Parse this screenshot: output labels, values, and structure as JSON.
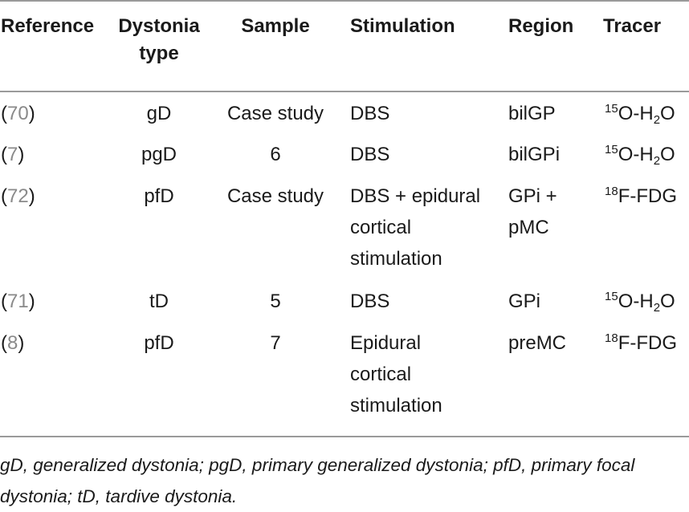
{
  "headers": {
    "reference": "Reference",
    "dystonia_type_line1": "Dystonia",
    "dystonia_type_line2": "type",
    "sample": "Sample",
    "stimulation": "Stimulation",
    "region": "Region",
    "tracer": "Tracer"
  },
  "rows": [
    {
      "ref": "70",
      "type": "gD",
      "sample": "Case study",
      "stim": [
        "DBS"
      ],
      "region": [
        "bilGP"
      ],
      "tracer_sup": "15",
      "tracer_main": "O-H",
      "tracer_sub": "2",
      "tracer_end": "O"
    },
    {
      "ref": "7",
      "type": "pgD",
      "sample": "6",
      "stim": [
        "DBS"
      ],
      "region": [
        "bilGPi"
      ],
      "tracer_sup": "15",
      "tracer_main": "O-H",
      "tracer_sub": "2",
      "tracer_end": "O"
    },
    {
      "ref": "72",
      "type": "pfD",
      "sample": "Case study",
      "stim": [
        "DBS + epidural",
        "cortical",
        "stimulation"
      ],
      "region": [
        "GPi +",
        "pMC"
      ],
      "tracer_sup": "18",
      "tracer_main": "F-FDG",
      "tracer_sub": "",
      "tracer_end": ""
    },
    {
      "ref": "71",
      "type": "tD",
      "sample": "5",
      "stim": [
        "DBS"
      ],
      "region": [
        "GPi"
      ],
      "tracer_sup": "15",
      "tracer_main": "O-H",
      "tracer_sub": "2",
      "tracer_end": "O"
    },
    {
      "ref": "8",
      "type": "pfD",
      "sample": "7",
      "stim": [
        "Epidural",
        "cortical",
        "stimulation"
      ],
      "region": [
        "preMC"
      ],
      "tracer_sup": "18",
      "tracer_main": "F-FDG",
      "tracer_sub": "",
      "tracer_end": ""
    }
  ],
  "footnote": {
    "line1": "gD, generalized dystonia; pgD, primary generalized dystonia; pfD, primary focal",
    "line2": "dystonia; tD, tardive dystonia."
  }
}
